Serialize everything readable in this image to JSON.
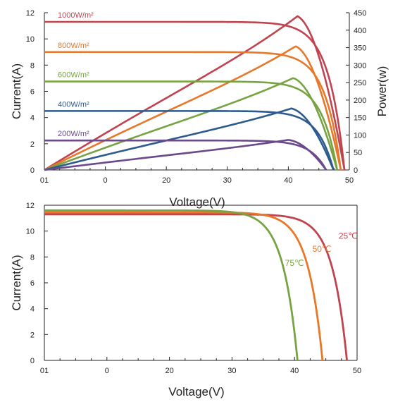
{
  "chart_data": [
    {
      "type": "line",
      "xlabel": "Voltage(V)",
      "ylabel": "Current(A)",
      "y2label": "Power(w)",
      "xticks": [
        "01",
        "0",
        "20",
        "30",
        "40",
        "50"
      ],
      "yticks": [
        "0",
        "2",
        "4",
        "6",
        "8",
        "10",
        "12"
      ],
      "y2ticks": [
        "0",
        "50",
        "100",
        "150",
        "200",
        "250",
        "300",
        "350",
        "400",
        "450"
      ],
      "xlim": [
        0,
        50
      ],
      "ylim": [
        0,
        12
      ],
      "y2lim": [
        0,
        450
      ],
      "grid": false,
      "series": [
        {
          "name": "1000W/m²",
          "color": "#c0444f",
          "isc": 11.3,
          "voc": 49.2,
          "pmax_v": 41.5,
          "pmax": 440
        },
        {
          "name": "800W/m²",
          "color": "#e7782a",
          "isc": 9.0,
          "voc": 48.6,
          "pmax_v": 41.2,
          "pmax": 354
        },
        {
          "name": "600W/m²",
          "color": "#78a343",
          "isc": 6.75,
          "voc": 48.0,
          "pmax_v": 40.8,
          "pmax": 263
        },
        {
          "name": "400W/m²",
          "color": "#2e5b8e",
          "isc": 4.5,
          "voc": 47.4,
          "pmax_v": 40.5,
          "pmax": 176
        },
        {
          "name": "200W/m²",
          "color": "#6a4a8a",
          "isc": 2.25,
          "voc": 46.2,
          "pmax_v": 40.0,
          "pmax": 86
        }
      ]
    },
    {
      "type": "line",
      "xlabel": "Voltage(V)",
      "ylabel": "Current(A)",
      "xticks": [
        "01",
        "0",
        "20",
        "30",
        "40",
        "50"
      ],
      "yticks": [
        "0",
        "2",
        "4",
        "6",
        "8",
        "10",
        "12"
      ],
      "xlim": [
        0,
        50
      ],
      "ylim": [
        0,
        12
      ],
      "grid": false,
      "series": [
        {
          "name": "25℃",
          "color": "#c0444f",
          "isc": 11.3,
          "voc": 49.6
        },
        {
          "name": "50℃",
          "color": "#e7782a",
          "isc": 11.45,
          "voc": 45.6
        },
        {
          "name": "75℃",
          "color": "#78a343",
          "isc": 11.6,
          "voc": 41.5
        }
      ]
    }
  ]
}
